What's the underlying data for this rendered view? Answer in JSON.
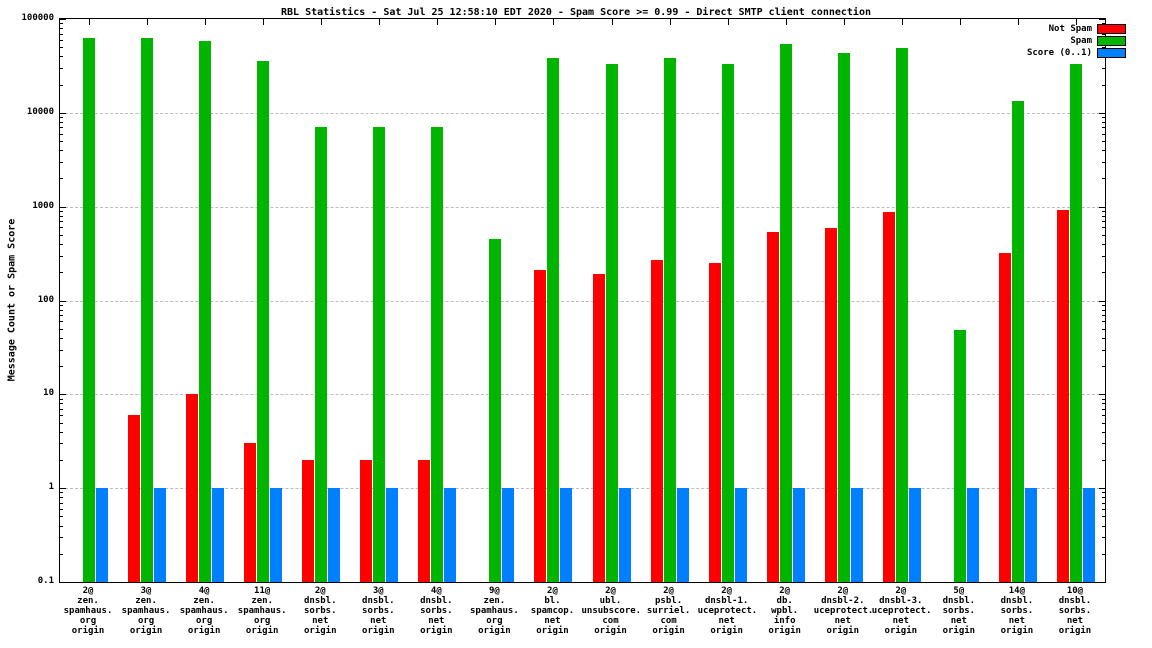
{
  "title": "RBL Statistics - Sat Jul 25 12:58:10 EDT 2020 - Spam Score >= 0.99 - Direct SMTP client connection",
  "ylabel": "Message Count or Spam Score",
  "legend": [
    {
      "label": "Not Spam",
      "color": "#ff0000"
    },
    {
      "label": "Spam",
      "color": "#00b400"
    },
    {
      "label": "Score (0..1)",
      "color": "#0080ff"
    }
  ],
  "chart_data": {
    "type": "bar",
    "scale": "log",
    "ylim": [
      0.1,
      100000
    ],
    "yticks": [
      0.1,
      1,
      10,
      100,
      1000,
      10000,
      100000
    ],
    "grid": true,
    "legend_position": "top-right",
    "title": "RBL Statistics - Sat Jul 25 12:58:10 EDT 2020 - Spam Score >= 0.99 - Direct SMTP client connection",
    "xlabel": "",
    "ylabel": "Message Count or Spam Score",
    "categories": [
      [
        "2@",
        "zen.",
        "spamhaus.",
        "org",
        "origin"
      ],
      [
        "3@",
        "zen.",
        "spamhaus.",
        "org",
        "origin"
      ],
      [
        "4@",
        "zen.",
        "spamhaus.",
        "org",
        "origin"
      ],
      [
        "11@",
        "zen.",
        "spamhaus.",
        "org",
        "origin"
      ],
      [
        "2@",
        "dnsbl.",
        "sorbs.",
        "net",
        "origin"
      ],
      [
        "3@",
        "dnsbl.",
        "sorbs.",
        "net",
        "origin"
      ],
      [
        "4@",
        "dnsbl.",
        "sorbs.",
        "net",
        "origin"
      ],
      [
        "9@",
        "zen.",
        "spamhaus.",
        "org",
        "origin"
      ],
      [
        "2@",
        "bl.",
        "spamcop.",
        "net",
        "origin"
      ],
      [
        "2@",
        "ubl.",
        "unsubscore.",
        "com",
        "origin"
      ],
      [
        "2@",
        "psbl.",
        "surriel.",
        "com",
        "origin"
      ],
      [
        "2@",
        "dnsbl-1.",
        "uceprotect.",
        "net",
        "origin"
      ],
      [
        "2@",
        "db.",
        "wpbl.",
        "info",
        "origin"
      ],
      [
        "2@",
        "dnsbl-2.",
        "uceprotect.",
        "net",
        "origin"
      ],
      [
        "2@",
        "dnsbl-3.",
        "uceprotect.",
        "net",
        "origin"
      ],
      [
        "5@",
        "dnsbl.",
        "sorbs.",
        "net",
        "origin"
      ],
      [
        "14@",
        "dnsbl.",
        "sorbs.",
        "net",
        "origin"
      ],
      [
        "10@",
        "dnsbl.",
        "sorbs.",
        "net",
        "origin"
      ]
    ],
    "series": [
      {
        "name": "Not Spam",
        "color": "#ff0000",
        "values": [
          null,
          6,
          10,
          3,
          2,
          2,
          2,
          null,
          210,
          190,
          270,
          250,
          540,
          590,
          880,
          null,
          320,
          920
        ]
      },
      {
        "name": "Spam",
        "color": "#00b400",
        "values": [
          62000,
          62000,
          58000,
          36000,
          7000,
          7000,
          7000,
          450,
          38000,
          33000,
          38000,
          33000,
          54000,
          43000,
          49000,
          48,
          13500,
          33000
        ]
      },
      {
        "name": "Score (0..1)",
        "color": "#0080ff",
        "values": [
          1,
          1,
          1,
          1,
          1,
          1,
          1,
          1,
          1,
          1,
          1,
          1,
          1,
          1,
          1,
          1,
          1,
          1
        ]
      }
    ]
  }
}
